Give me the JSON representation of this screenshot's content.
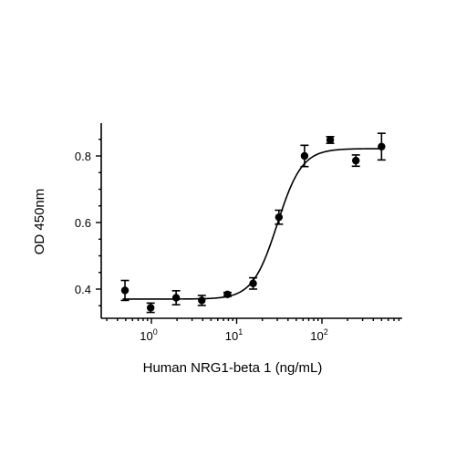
{
  "chart_data": {
    "type": "scatter",
    "xscale": "log",
    "xlabel": "Human NRG1-beta 1 (ng/mL)",
    "ylabel": "OD 450nm",
    "xlim": [
      0.35,
      650
    ],
    "ylim": [
      0.3,
      0.9
    ],
    "xticks": [
      {
        "value": 1,
        "base": "10",
        "exp": "0"
      },
      {
        "value": 10,
        "base": "10",
        "exp": "1"
      },
      {
        "value": 100,
        "base": "10",
        "exp": "2"
      }
    ],
    "yticks": [
      {
        "value": 0.4,
        "label": "0.4"
      },
      {
        "value": 0.6,
        "label": "0.6"
      },
      {
        "value": 0.8,
        "label": "0.8"
      }
    ],
    "grid": false,
    "legend": "none",
    "points": [
      {
        "x": 0.49,
        "y": 0.396,
        "err": 0.03
      },
      {
        "x": 0.98,
        "y": 0.344,
        "err": 0.014
      },
      {
        "x": 1.95,
        "y": 0.374,
        "err": 0.021
      },
      {
        "x": 3.9,
        "y": 0.366,
        "err": 0.015
      },
      {
        "x": 7.8,
        "y": 0.384,
        "err": 0.006
      },
      {
        "x": 15.6,
        "y": 0.417,
        "err": 0.017
      },
      {
        "x": 31.3,
        "y": 0.616,
        "err": 0.021
      },
      {
        "x": 62.5,
        "y": 0.8,
        "err": 0.032
      },
      {
        "x": 125,
        "y": 0.848,
        "err": 0.01
      },
      {
        "x": 250,
        "y": 0.786,
        "err": 0.017
      },
      {
        "x": 500,
        "y": 0.828,
        "err": 0.04
      }
    ],
    "fit_curve": {
      "model": "4PL",
      "bottom": 0.37,
      "top": 0.822,
      "ec50": 30,
      "hill": 3.0
    },
    "colors": {
      "points": "#000000",
      "curve": "#000000",
      "axes": "#000000"
    }
  }
}
